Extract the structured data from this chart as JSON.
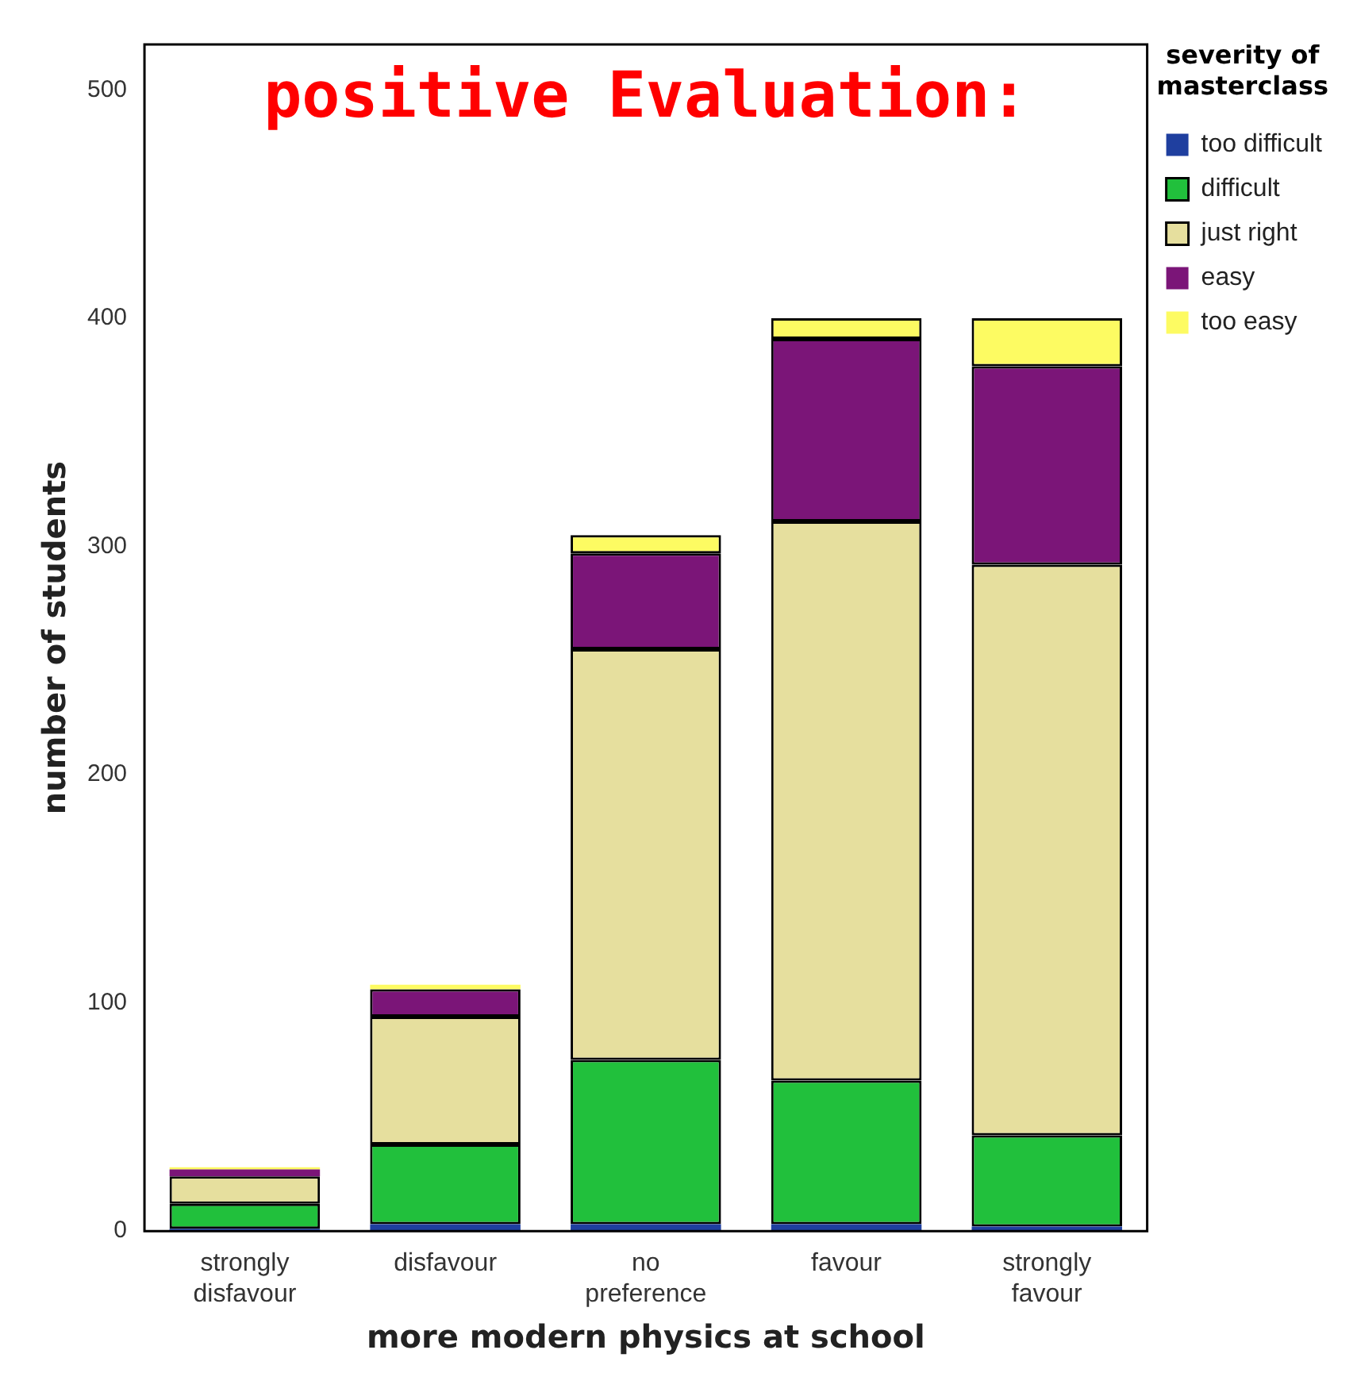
{
  "chart_data": {
    "type": "bar",
    "title": "positive Evaluation:",
    "xlabel": "more modern physics at school",
    "ylabel": "number of students",
    "legend_title": "severity of masterclass",
    "categories": [
      "strongly disfavour",
      "disfavour",
      "no preference",
      "favour",
      "strongly favour"
    ],
    "series": [
      {
        "name": "too difficult",
        "color": "#1f3f9f",
        "values": [
          1,
          3,
          3,
          3,
          2
        ]
      },
      {
        "name": "difficult",
        "color": "#21c03c",
        "values": [
          11,
          35,
          72,
          63,
          40
        ]
      },
      {
        "name": "just right",
        "color": "#e6df9e",
        "values": [
          12,
          56,
          180,
          245,
          250
        ]
      },
      {
        "name": "easy",
        "color": "#7b1578",
        "values": [
          3,
          12,
          42,
          80,
          87
        ]
      },
      {
        "name": "too easy",
        "color": "#fdfb62",
        "values": [
          1,
          2,
          8,
          9,
          21
        ]
      }
    ],
    "stacked": true,
    "ylim": [
      0,
      520
    ],
    "yticks": [
      0,
      100,
      200,
      300,
      400,
      500
    ],
    "grid": false,
    "legend": "top right"
  }
}
